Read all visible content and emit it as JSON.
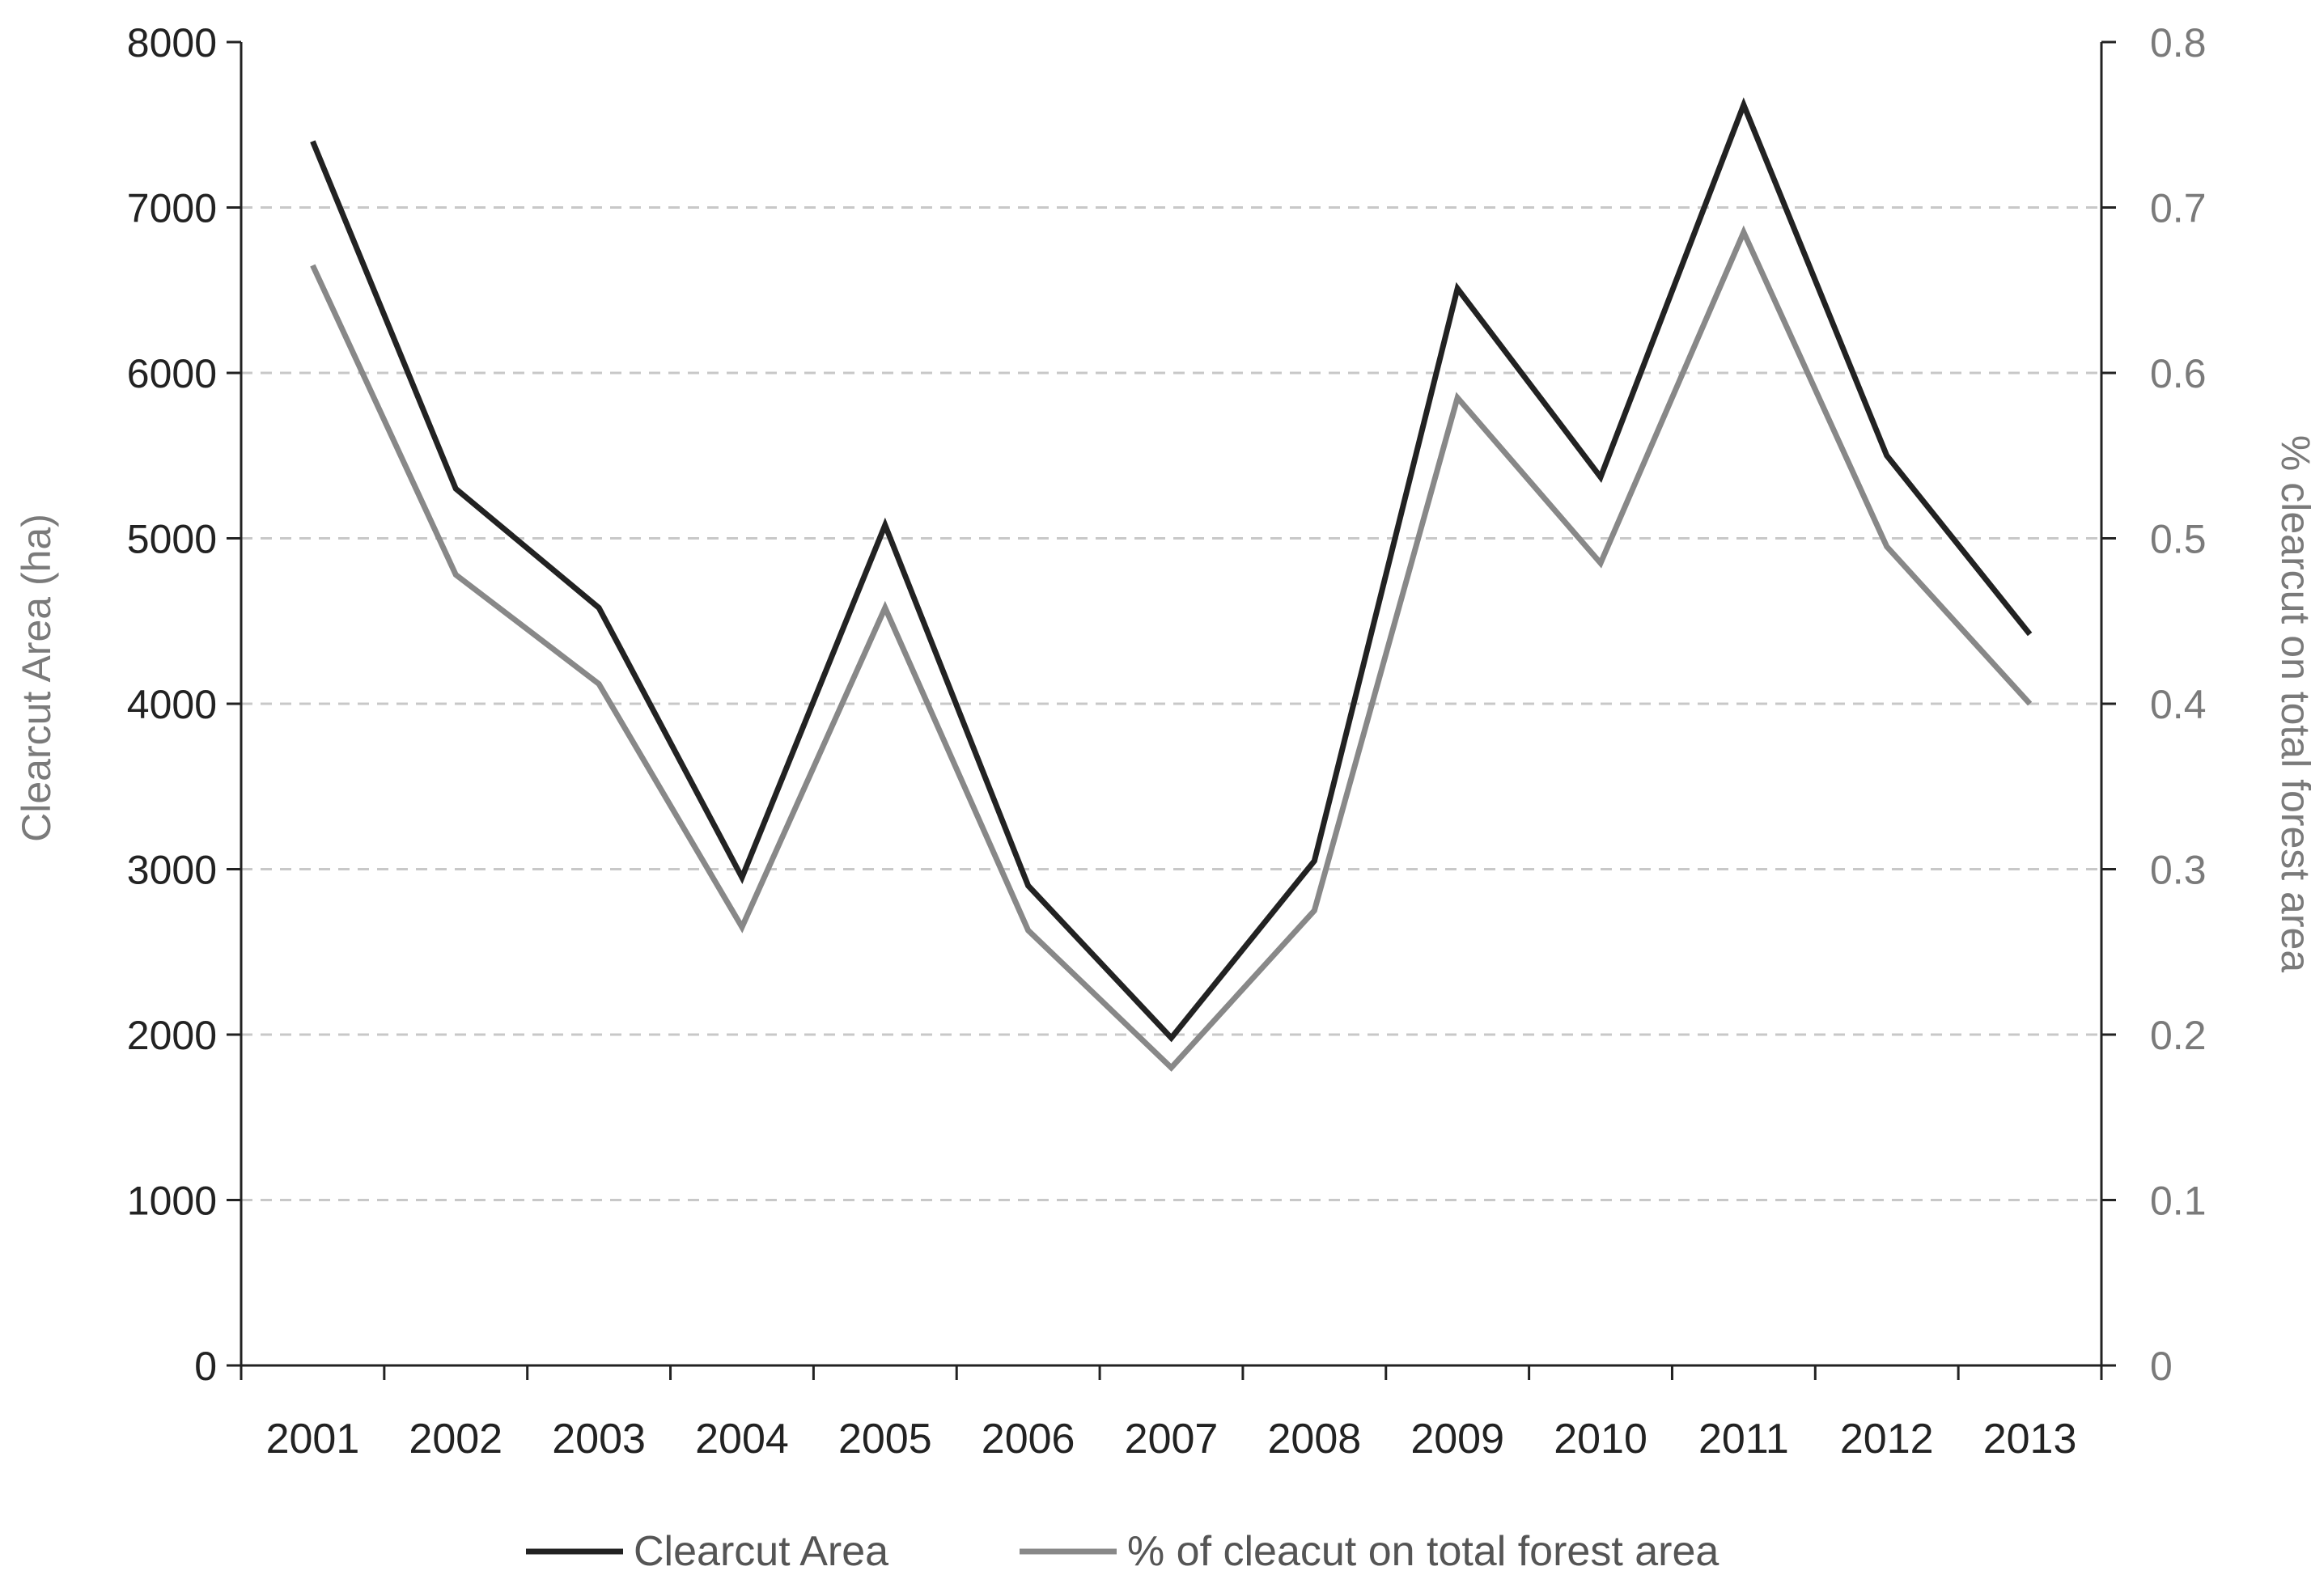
{
  "chart_data": {
    "type": "line",
    "title": "",
    "x": [
      "2001",
      "2002",
      "2003",
      "2004",
      "2005",
      "2006",
      "2007",
      "2008",
      "2009",
      "2010",
      "2011",
      "2012",
      "2013"
    ],
    "ylabel": "Clearcut Area (ha)",
    "ylabel_right": "% clearcut on total forest area",
    "ylim": [
      0,
      8000
    ],
    "ylim_right": [
      0,
      0.8
    ],
    "yticks": [
      "0",
      "1000",
      "2000",
      "3000",
      "4000",
      "5000",
      "6000",
      "7000",
      "8000"
    ],
    "yticks_right": [
      "0",
      "0.1",
      "0.2",
      "0.3",
      "0.4",
      "0.5",
      "0.6",
      "0.7",
      "0.8"
    ],
    "grid": "horizontal dashed",
    "legend_position": "bottom",
    "series": [
      {
        "name": "Clearcut Area",
        "axis": "left",
        "color": "#222222",
        "values": [
          7400,
          5300,
          4580,
          2950,
          5080,
          2900,
          1980,
          3050,
          6510,
          5370,
          7620,
          5500,
          4420
        ]
      },
      {
        "name": "% of cleacut on total forest area",
        "axis": "right",
        "color": "#888888",
        "values": [
          0.665,
          0.478,
          0.412,
          0.265,
          0.458,
          0.263,
          0.18,
          0.275,
          0.585,
          0.485,
          0.685,
          0.495,
          0.4
        ]
      }
    ]
  },
  "axis_label_color": "#7a7a7a",
  "tick_label_color": "#222222",
  "grid_color": "#c8c8c8"
}
